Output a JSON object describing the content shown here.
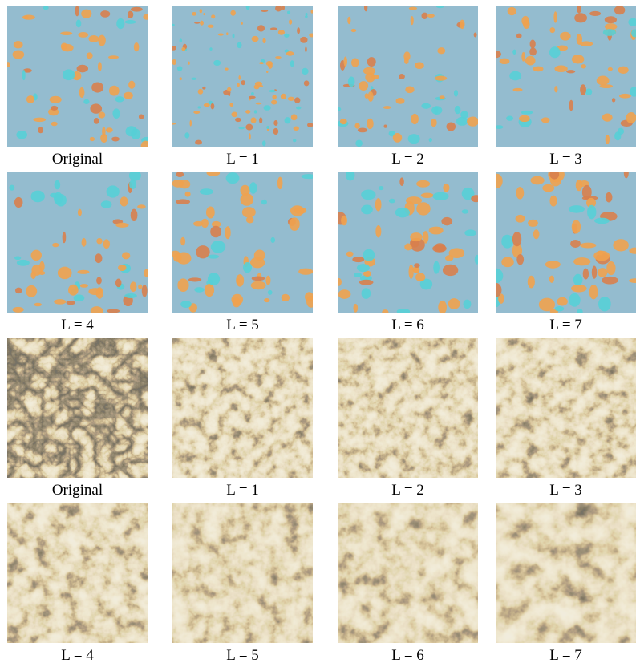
{
  "figure": {
    "panels": [
      {
        "caption": "Original"
      },
      {
        "caption": "L = 1"
      },
      {
        "caption": "L = 2"
      },
      {
        "caption": "L = 3"
      },
      {
        "caption": "L = 4"
      },
      {
        "caption": "L = 5"
      },
      {
        "caption": "L = 6"
      },
      {
        "caption": "L = 7"
      },
      {
        "caption": "Original"
      },
      {
        "caption": "L = 1"
      },
      {
        "caption": "L = 2"
      },
      {
        "caption": "L = 3"
      },
      {
        "caption": "L = 4"
      },
      {
        "caption": "L = 5"
      },
      {
        "caption": "L = 6"
      },
      {
        "caption": "L = 7"
      }
    ]
  }
}
